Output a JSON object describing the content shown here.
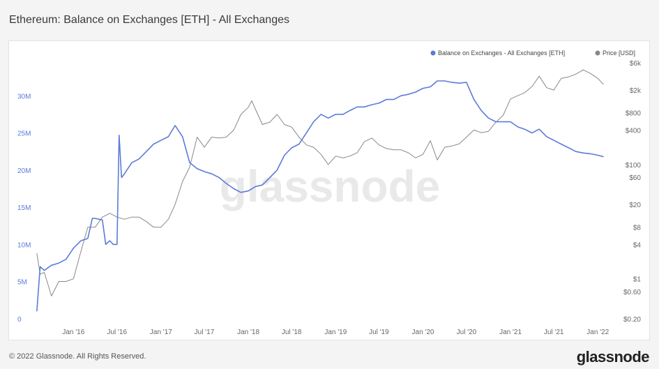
{
  "title": "Ethereum: Balance on Exchanges [ETH] - All Exchanges",
  "watermark": "glassnode",
  "footer": {
    "copyright": "© 2022 Glassnode. All Rights Reserved.",
    "logo": "glassnode"
  },
  "colors": {
    "balance": "#5b7bd8",
    "price": "#888888"
  },
  "chart_data": {
    "type": "line",
    "x_ticks": [
      "Jan '16",
      "Jul '16",
      "Jan '17",
      "Jul '17",
      "Jan '18",
      "Jul '18",
      "Jan '19",
      "Jul '19",
      "Jan '20",
      "Jul '20",
      "Jan '21",
      "Jul '21",
      "Jan '22"
    ],
    "left_axis": {
      "ylim": [
        0,
        35000000
      ],
      "ticks": [
        "0",
        "5M",
        "10M",
        "15M",
        "20M",
        "25M",
        "30M"
      ],
      "tick_values": [
        0,
        5000000,
        10000000,
        15000000,
        20000000,
        25000000,
        30000000
      ],
      "scale": "linear"
    },
    "right_axis": {
      "scale": "log",
      "ticks": [
        "$0.20",
        "$0.60",
        "$1",
        "$4",
        "$8",
        "$20",
        "$60",
        "$100",
        "$400",
        "$800",
        "$2k",
        "$6k"
      ],
      "tick_values": [
        0.2,
        0.6,
        1,
        4,
        8,
        20,
        60,
        100,
        400,
        800,
        2000,
        6000
      ]
    },
    "legend": {
      "placement": "top-right",
      "entries": [
        "Balance on Exchanges - All Exchanges [ETH]",
        "Price [USD]"
      ]
    },
    "grid": false,
    "series": [
      {
        "name": "Balance on Exchanges - All Exchanges [ETH]",
        "axis": "left",
        "x": [
          "2015-08-01",
          "2015-08-15",
          "2015-09-01",
          "2015-10-01",
          "2015-11-01",
          "2015-12-01",
          "2016-01-01",
          "2016-02-01",
          "2016-03-01",
          "2016-03-20",
          "2016-04-01",
          "2016-05-01",
          "2016-05-15",
          "2016-06-01",
          "2016-06-15",
          "2016-07-01",
          "2016-07-10",
          "2016-07-20",
          "2016-08-01",
          "2016-09-01",
          "2016-10-01",
          "2016-11-01",
          "2016-12-01",
          "2017-01-01",
          "2017-02-01",
          "2017-03-01",
          "2017-04-01",
          "2017-05-01",
          "2017-06-01",
          "2017-07-01",
          "2017-08-01",
          "2017-09-01",
          "2017-10-01",
          "2017-11-01",
          "2017-12-01",
          "2018-01-01",
          "2018-02-01",
          "2018-03-01",
          "2018-04-01",
          "2018-05-01",
          "2018-06-01",
          "2018-07-01",
          "2018-08-01",
          "2018-09-01",
          "2018-10-01",
          "2018-11-01",
          "2018-12-01",
          "2019-01-01",
          "2019-02-01",
          "2019-03-01",
          "2019-04-01",
          "2019-05-01",
          "2019-06-01",
          "2019-07-01",
          "2019-08-01",
          "2019-09-01",
          "2019-10-01",
          "2019-11-01",
          "2019-12-01",
          "2020-01-01",
          "2020-02-01",
          "2020-03-01",
          "2020-04-01",
          "2020-05-01",
          "2020-06-01",
          "2020-07-01",
          "2020-08-01",
          "2020-09-01",
          "2020-10-01",
          "2020-11-01",
          "2020-12-01",
          "2021-01-01",
          "2021-02-01",
          "2021-03-01",
          "2021-04-01",
          "2021-05-01",
          "2021-06-01",
          "2021-07-01",
          "2021-08-01",
          "2021-09-01",
          "2021-10-01",
          "2021-11-01",
          "2021-12-01",
          "2022-01-01",
          "2022-01-25"
        ],
        "values": [
          1000000,
          7000000,
          6500000,
          7200000,
          7500000,
          8000000,
          9500000,
          10500000,
          10800000,
          13500000,
          13500000,
          13300000,
          10000000,
          10500000,
          10000000,
          10000000,
          24700000,
          19000000,
          19500000,
          21000000,
          21500000,
          22500000,
          23500000,
          24000000,
          24500000,
          26000000,
          24500000,
          21000000,
          20200000,
          19800000,
          19500000,
          19000000,
          18200000,
          17500000,
          17000000,
          17200000,
          17800000,
          18000000,
          19000000,
          20000000,
          22000000,
          23000000,
          23500000,
          25000000,
          26500000,
          27500000,
          27000000,
          27500000,
          27500000,
          28000000,
          28500000,
          28500000,
          28800000,
          29000000,
          29500000,
          29500000,
          30000000,
          30200000,
          30500000,
          31000000,
          31200000,
          32000000,
          32000000,
          31800000,
          31700000,
          31800000,
          29500000,
          28000000,
          27000000,
          26500000,
          26500000,
          26500000,
          25800000,
          25500000,
          25000000,
          25500000,
          24500000,
          24000000,
          23500000,
          23000000,
          22500000,
          22300000,
          22200000,
          22000000,
          21800000
        ]
      },
      {
        "name": "Price [USD]",
        "axis": "right",
        "x": [
          "2015-08-01",
          "2015-08-15",
          "2015-09-01",
          "2015-10-01",
          "2015-11-01",
          "2015-12-01",
          "2016-01-01",
          "2016-02-01",
          "2016-03-01",
          "2016-04-01",
          "2016-05-01",
          "2016-06-01",
          "2016-07-01",
          "2016-08-01",
          "2016-09-01",
          "2016-10-01",
          "2016-11-01",
          "2016-12-01",
          "2017-01-01",
          "2017-02-01",
          "2017-03-01",
          "2017-04-01",
          "2017-05-01",
          "2017-06-01",
          "2017-07-01",
          "2017-08-01",
          "2017-09-01",
          "2017-10-01",
          "2017-11-01",
          "2017-12-01",
          "2018-01-01",
          "2018-01-15",
          "2018-02-01",
          "2018-03-01",
          "2018-04-01",
          "2018-05-01",
          "2018-06-01",
          "2018-07-01",
          "2018-08-01",
          "2018-09-01",
          "2018-10-01",
          "2018-11-01",
          "2018-12-01",
          "2019-01-01",
          "2019-02-01",
          "2019-03-01",
          "2019-04-01",
          "2019-05-01",
          "2019-06-01",
          "2019-07-01",
          "2019-08-01",
          "2019-09-01",
          "2019-10-01",
          "2019-11-01",
          "2019-12-01",
          "2020-01-01",
          "2020-02-01",
          "2020-03-01",
          "2020-04-01",
          "2020-05-01",
          "2020-06-01",
          "2020-07-01",
          "2020-08-01",
          "2020-09-01",
          "2020-10-01",
          "2020-11-01",
          "2020-12-01",
          "2021-01-01",
          "2021-02-01",
          "2021-03-01",
          "2021-04-01",
          "2021-05-01",
          "2021-06-01",
          "2021-07-01",
          "2021-08-01",
          "2021-09-01",
          "2021-10-01",
          "2021-11-01",
          "2021-12-01",
          "2022-01-01",
          "2022-01-25"
        ],
        "values": [
          2.8,
          1.2,
          1.3,
          0.5,
          0.9,
          0.9,
          1.0,
          3.0,
          8.0,
          8.0,
          12.0,
          14.0,
          12.0,
          11.0,
          12.0,
          12.0,
          10.0,
          8.0,
          8.0,
          11.0,
          20.0,
          50.0,
          90.0,
          300.0,
          200.0,
          300.0,
          290.0,
          300.0,
          400.0,
          750.0,
          1000.0,
          1300.0,
          900.0,
          500.0,
          550.0,
          750.0,
          500.0,
          450.0,
          300.0,
          220.0,
          200.0,
          150.0,
          100.0,
          140.0,
          130.0,
          140.0,
          160.0,
          250.0,
          290.0,
          220.0,
          190.0,
          180.0,
          180.0,
          160.0,
          130.0,
          150.0,
          260.0,
          120.0,
          200.0,
          210.0,
          230.0,
          300.0,
          400.0,
          360.0,
          380.0,
          550.0,
          720.0,
          1400.0,
          1600.0,
          1800.0,
          2300.0,
          3500.0,
          2200.0,
          2000.0,
          3200.0,
          3400.0,
          3800.0,
          4500.0,
          3900.0,
          3200.0,
          2500
        ]
      }
    ]
  }
}
